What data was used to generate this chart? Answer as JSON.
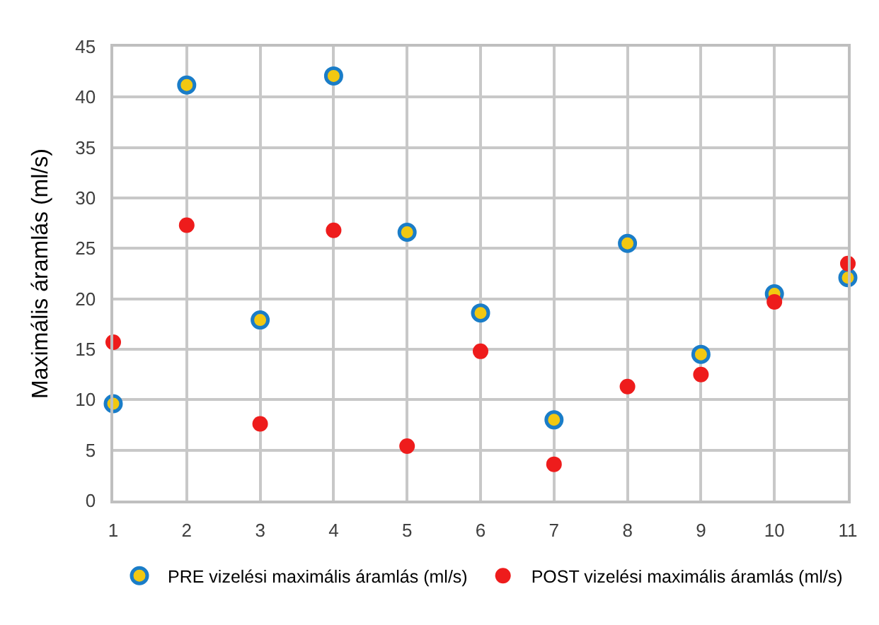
{
  "chart_data": {
    "type": "scatter",
    "ylabel": "Maximális áramlás (ml/s)",
    "x": [
      1,
      2,
      3,
      4,
      5,
      6,
      7,
      8,
      9,
      10,
      11
    ],
    "series": [
      {
        "name": "PRE vizelési maximális áramlás (ml/s)",
        "color": "#f2c811",
        "values": [
          9.6,
          41.2,
          17.9,
          42.1,
          26.6,
          18.6,
          8.0,
          25.5,
          14.5,
          20.5,
          22.1
        ]
      },
      {
        "name": "POST vizelési maximális áramlás (ml/s)",
        "color": "#ee1c1c",
        "values": [
          15.7,
          27.3,
          7.6,
          26.8,
          5.4,
          14.8,
          3.6,
          11.3,
          12.5,
          19.7,
          23.5
        ]
      }
    ],
    "xlim": [
      1,
      11
    ],
    "xticks": [
      1,
      2,
      3,
      4,
      5,
      6,
      7,
      8,
      9,
      10,
      11
    ],
    "ylim": [
      0,
      45
    ],
    "yticks": [
      0,
      5,
      10,
      15,
      20,
      25,
      30,
      35,
      40,
      45
    ],
    "grid": true,
    "legend": "bottom",
    "marker": "circle"
  }
}
